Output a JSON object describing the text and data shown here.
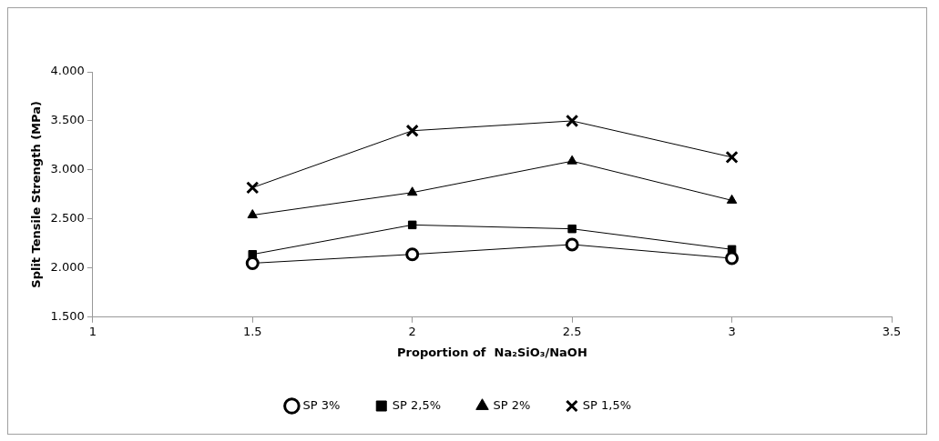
{
  "chart_data": {
    "type": "line",
    "xlabel": "Proportion of  Na₂SiO₃/NaOH",
    "ylabel": "Split Tensile Strength (MPa)",
    "x": [
      1.5,
      2,
      2.5,
      3
    ],
    "series": [
      {
        "name": "SP 3%",
        "color": "#000000",
        "marker": "circle",
        "values": [
          2.05,
          2.14,
          2.24,
          2.1
        ]
      },
      {
        "name": "SP 2,5%",
        "color": "#000000",
        "marker": "square",
        "values": [
          2.14,
          2.44,
          2.4,
          2.19
        ]
      },
      {
        "name": "SP 2%",
        "color": "#000000",
        "marker": "triangle",
        "values": [
          2.54,
          2.77,
          3.09,
          2.69
        ]
      },
      {
        "name": "SP 1,5%",
        "color": "#000000",
        "marker": "cross",
        "values": [
          2.82,
          3.4,
          3.5,
          3.13
        ]
      }
    ],
    "xlim": [
      1,
      3.5
    ],
    "xticks": [
      1,
      1.5,
      2,
      2.5,
      3,
      3.5
    ],
    "ylim": [
      1.5,
      4
    ],
    "yticks": [
      {
        "value": 1.5,
        "label": "1.500"
      },
      {
        "value": 2,
        "label": "2.000"
      },
      {
        "value": 2.5,
        "label": "2.500"
      },
      {
        "value": 3,
        "label": "3.000"
      },
      {
        "value": 3.5,
        "label": "3.500"
      },
      {
        "value": 4,
        "label": "4.000"
      }
    ],
    "grid": false,
    "legend": "bottom",
    "line_style": "solid"
  }
}
